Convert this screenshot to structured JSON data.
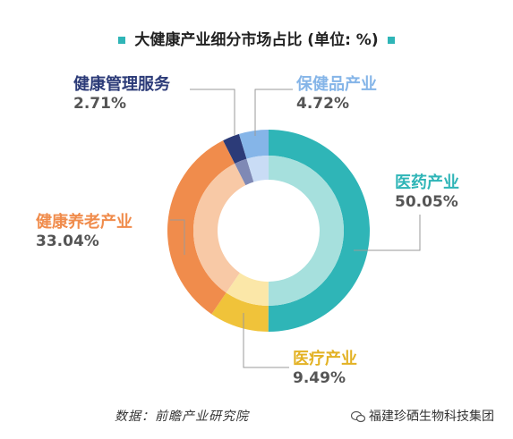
{
  "chart_data": {
    "type": "pie",
    "title": "大健康产业细分市场占比 (单位: %)",
    "unit": "%",
    "categories": [
      "医药产业",
      "医疗产业",
      "健康养老产业",
      "健康管理服务",
      "保健品产业"
    ],
    "values": [
      50.05,
      9.49,
      33.04,
      2.71,
      4.72
    ],
    "value_labels": [
      "50.05%",
      "9.49%",
      "33.04%",
      "2.71%",
      "4.72%"
    ],
    "colors": {
      "outer": [
        "#2fb5b7",
        "#f0c33a",
        "#f08c4c",
        "#2c3b78",
        "#85b5e8"
      ],
      "inner": [
        "#a6e0dd",
        "#fbe7a8",
        "#f8c9a6",
        "#7f89b5",
        "#c9dcf5"
      ],
      "label": [
        "#2fb5b7",
        "#e3b224",
        "#f08c4c",
        "#2c3b78",
        "#85b5e8"
      ]
    }
  },
  "footer": {
    "source": "数据：前瞻产业研究院",
    "watermark": "福建珍硒生物科技集团"
  }
}
